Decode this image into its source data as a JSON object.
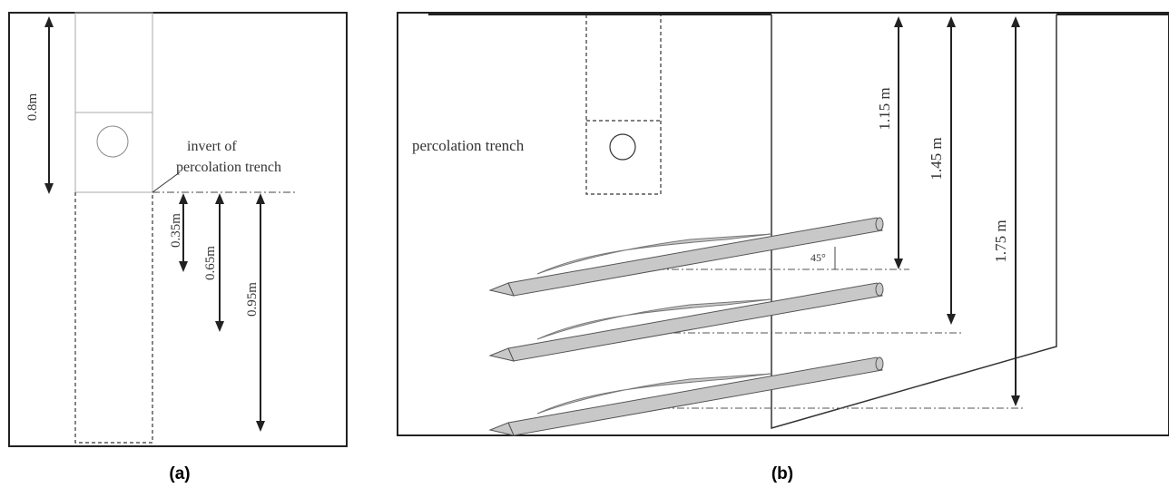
{
  "panel_a": {
    "caption": "(a)",
    "labels": {
      "top_depth": "0.8m",
      "invert_line1": "invert of",
      "invert_line2": "percolation trench",
      "depth_1": "0.35m",
      "depth_2": "0.65m",
      "depth_3": "0.95m"
    }
  },
  "panel_b": {
    "caption": "(b)",
    "labels": {
      "trench": "percolation trench",
      "depth_1": "1.15 m",
      "depth_2": "1.45 m",
      "depth_3": "1.75 m",
      "angle": "45°"
    }
  },
  "colors": {
    "line": "#222222",
    "thin": "#999999",
    "rod_fill": "#c8c8c8",
    "rod_stroke": "#555555"
  }
}
